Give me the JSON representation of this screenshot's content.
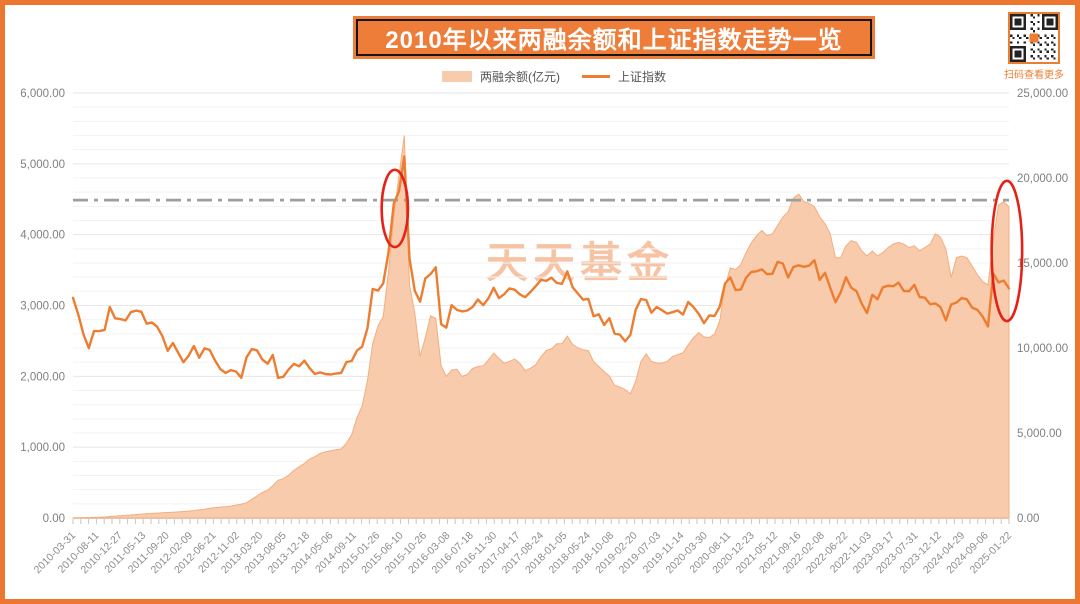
{
  "title": "2010年以来两融余额和上证指数走势一览",
  "qr": {
    "caption": "扫码查看更多"
  },
  "watermark": "天天基金",
  "chart_data": {
    "type": "area+line",
    "title": "2010年以来两融余额和上证指数走势一览",
    "legend_position": "top",
    "grid": "horizontal-only",
    "x_labels": [
      "2010-03-31",
      "2010-08-11",
      "2010-12-27",
      "2011-05-13",
      "2011-09-20",
      "2012-02-09",
      "2012-06-21",
      "2012-11-02",
      "2013-03-20",
      "2013-08-05",
      "2013-12-18",
      "2014-05-06",
      "2014-09-11",
      "2015-01-26",
      "2015-06-10",
      "2015-10-26",
      "2016-03-08",
      "2016-07-18",
      "2016-11-30",
      "2017-04-17",
      "2017-08-24",
      "2018-01-05",
      "2018-05-24",
      "2018-10-08",
      "2019-02-20",
      "2019-07-03",
      "2019-11-14",
      "2020-03-30",
      "2020-08-11",
      "2020-12-23",
      "2021-05-12",
      "2021-09-16",
      "2022-02-08",
      "2022-06-22",
      "2022-11-03",
      "2023-03-17",
      "2023-07-31",
      "2023-12-12",
      "2024-04-29",
      "2024-09-06",
      "2025-01-22"
    ],
    "left_axis": {
      "min": 0,
      "max": 6000,
      "tick_interval": 1000,
      "labels": [
        "0.00",
        "1,000.00",
        "2,000.00",
        "3,000.00",
        "4,000.00",
        "5,000.00",
        "6,000.00"
      ]
    },
    "right_axis": {
      "min": 0,
      "max": 25000,
      "tick_interval": 5000,
      "labels": [
        "0.00",
        "5,000.00",
        "10,000.00",
        "15,000.00",
        "20,000.00",
        "25,000.00"
      ]
    },
    "reference_line": {
      "axis": "right",
      "value": 18700,
      "style": "dash-dot",
      "color": "#9E9E9E"
    },
    "series": [
      {
        "name": "两融余额(亿元)",
        "type": "area",
        "axis": "right",
        "color": "#F8CBAD",
        "edge_color": "#F3AE7E",
        "values": [
          15,
          20,
          25,
          30,
          38,
          45,
          60,
          90,
          110,
          128,
          150,
          175,
          205,
          230,
          250,
          268,
          290,
          310,
          325,
          340,
          360,
          382,
          405,
          435,
          475,
          520,
          575,
          610,
          640,
          665,
          700,
          760,
          815,
          895,
          1100,
          1300,
          1500,
          1630,
          1900,
          2220,
          2310,
          2510,
          2800,
          3010,
          3210,
          3465,
          3610,
          3800,
          3900,
          3950,
          4010,
          4060,
          4400,
          4900,
          5900,
          6600,
          8100,
          10250,
          11300,
          11850,
          14500,
          17700,
          20150,
          22500,
          13700,
          12050,
          9500,
          10600,
          11900,
          11740,
          8960,
          8330,
          8700,
          8750,
          8330,
          8450,
          8800,
          8910,
          8950,
          9300,
          9700,
          9390,
          9100,
          9210,
          9350,
          9100,
          8660,
          8810,
          9010,
          9500,
          9850,
          9950,
          10250,
          10260,
          10700,
          10210,
          10010,
          9900,
          9850,
          9200,
          8910,
          8610,
          8350,
          7810,
          7700,
          7560,
          7300,
          8050,
          9200,
          9650,
          9210,
          9110,
          9110,
          9210,
          9500,
          9610,
          9710,
          10190,
          10610,
          10900,
          10650,
          10610,
          10810,
          11610,
          13610,
          14710,
          14610,
          14910,
          15610,
          16190,
          16610,
          16910,
          16610,
          16710,
          17210,
          17710,
          18010,
          18810,
          19050,
          18610,
          18510,
          18320,
          17710,
          17310,
          16710,
          15310,
          15310,
          16010,
          16310,
          16210,
          15710,
          15410,
          15710,
          15410,
          15610,
          15910,
          16110,
          16210,
          16110,
          15910,
          16010,
          15710,
          15910,
          16110,
          16710,
          16510,
          15810,
          14150,
          15310,
          15410,
          15310,
          14810,
          14310,
          13910,
          13700,
          16300,
          18400,
          18600,
          18300
        ]
      },
      {
        "name": "上证指数",
        "type": "line",
        "axis": "left",
        "color": "#ED7D31",
        "values": [
          3109,
          2871,
          2592,
          2398,
          2638,
          2639,
          2656,
          2979,
          2820,
          2808,
          2790,
          2905,
          2928,
          2911,
          2743,
          2762,
          2701,
          2567,
          2359,
          2470,
          2333,
          2199,
          2293,
          2428,
          2263,
          2396,
          2372,
          2225,
          2103,
          2048,
          2086,
          2068,
          1980,
          2269,
          2385,
          2366,
          2237,
          2178,
          2301,
          1979,
          1994,
          2098,
          2175,
          2141,
          2221,
          2116,
          2033,
          2056,
          2033,
          2026,
          2039,
          2048,
          2201,
          2217,
          2364,
          2420,
          2683,
          3235,
          3210,
          3310,
          3748,
          4442,
          4612,
          5105,
          3664,
          3206,
          3053,
          3383,
          3445,
          3539,
          2738,
          2688,
          3004,
          2938,
          2917,
          2930,
          2979,
          3085,
          3005,
          3100,
          3250,
          3104,
          3159,
          3242,
          3223,
          3155,
          3117,
          3192,
          3273,
          3361,
          3349,
          3393,
          3317,
          3307,
          3481,
          3259,
          3169,
          3082,
          3095,
          2847,
          2876,
          2725,
          2821,
          2603,
          2588,
          2494,
          2585,
          2941,
          3091,
          3078,
          2899,
          2979,
          2933,
          2886,
          2905,
          2929,
          2872,
          3050,
          2977,
          2880,
          2750,
          2860,
          2852,
          2985,
          3310,
          3396,
          3218,
          3225,
          3392,
          3473,
          3483,
          3509,
          3442,
          3447,
          3615,
          3591,
          3397,
          3544,
          3568,
          3547,
          3564,
          3640,
          3361,
          3462,
          3252,
          3047,
          3186,
          3399,
          3253,
          3202,
          3024,
          2893,
          3151,
          3089,
          3256,
          3280,
          3273,
          3323,
          3205,
          3202,
          3291,
          3120,
          3110,
          3019,
          3030,
          2975,
          2789,
          3015,
          3041,
          3105,
          3087,
          2967,
          2939,
          2842,
          2704,
          3452,
          3326,
          3352,
          3243
        ]
      }
    ],
    "annotations": [
      {
        "type": "ellipse",
        "label": "2015-peak-circle",
        "cx_index": 61.2,
        "cy_left": 4370,
        "rx_index": 2.5,
        "ry_left": 545,
        "color": "#E42318"
      },
      {
        "type": "ellipse",
        "label": "2024-2025-peak-circle",
        "cx_index": 177.6,
        "cy_left": 3770,
        "rx_index": 2.9,
        "ry_left": 990,
        "color": "#E42318"
      }
    ]
  }
}
